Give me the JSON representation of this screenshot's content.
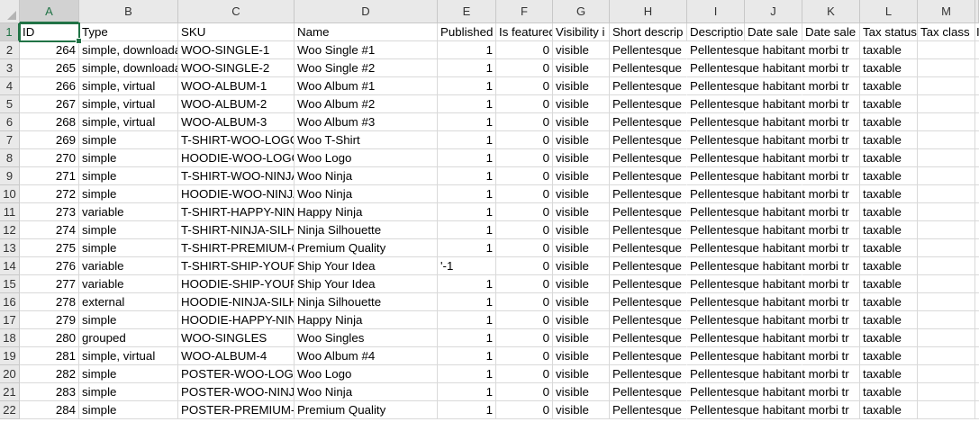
{
  "columns": [
    "A",
    "B",
    "C",
    "D",
    "E",
    "F",
    "G",
    "H",
    "I",
    "J",
    "K",
    "L",
    "M",
    ""
  ],
  "selected_cell": "A1",
  "accent_color": "#217346",
  "header_row": [
    "ID",
    "Type",
    "SKU",
    "Name",
    "Published",
    "Is featured",
    "Visibility i",
    "Short descrip",
    "Descriptio",
    "Date sale",
    "Date sale",
    "Tax status",
    "Tax class",
    "I"
  ],
  "rows": [
    [
      "264",
      "simple, downloadable",
      "WOO-SINGLE-1",
      "Woo Single #1",
      "1",
      "0",
      "visible",
      "Pellentesque",
      "Pellentesque habitant morbi tr",
      "taxable"
    ],
    [
      "265",
      "simple, downloadable",
      "WOO-SINGLE-2",
      "Woo Single #2",
      "1",
      "0",
      "visible",
      "Pellentesque",
      "Pellentesque habitant morbi tr",
      "taxable"
    ],
    [
      "266",
      "simple, virtual",
      "WOO-ALBUM-1",
      "Woo Album #1",
      "1",
      "0",
      "visible",
      "Pellentesque",
      "Pellentesque habitant morbi tr",
      "taxable"
    ],
    [
      "267",
      "simple, virtual",
      "WOO-ALBUM-2",
      "Woo Album #2",
      "1",
      "0",
      "visible",
      "Pellentesque",
      "Pellentesque habitant morbi tr",
      "taxable"
    ],
    [
      "268",
      "simple, virtual",
      "WOO-ALBUM-3",
      "Woo Album #3",
      "1",
      "0",
      "visible",
      "Pellentesque",
      "Pellentesque habitant morbi tr",
      "taxable"
    ],
    [
      "269",
      "simple",
      "T-SHIRT-WOO-LOGO",
      "Woo T-Shirt",
      "1",
      "0",
      "visible",
      "Pellentesque",
      "Pellentesque habitant morbi tr",
      "taxable"
    ],
    [
      "270",
      "simple",
      "HOODIE-WOO-LOGO",
      "Woo Logo",
      "1",
      "0",
      "visible",
      "Pellentesque",
      "Pellentesque habitant morbi tr",
      "taxable"
    ],
    [
      "271",
      "simple",
      "T-SHIRT-WOO-NINJA",
      "Woo Ninja",
      "1",
      "0",
      "visible",
      "Pellentesque",
      "Pellentesque habitant morbi tr",
      "taxable"
    ],
    [
      "272",
      "simple",
      "HOODIE-WOO-NINJA",
      "Woo Ninja",
      "1",
      "0",
      "visible",
      "Pellentesque",
      "Pellentesque habitant morbi tr",
      "taxable"
    ],
    [
      "273",
      "variable",
      "T-SHIRT-HAPPY-NINJA",
      "Happy Ninja",
      "1",
      "0",
      "visible",
      "Pellentesque",
      "Pellentesque habitant morbi tr",
      "taxable"
    ],
    [
      "274",
      "simple",
      "T-SHIRT-NINJA-SILHOUETTE",
      "Ninja Silhouette",
      "1",
      "0",
      "visible",
      "Pellentesque",
      "Pellentesque habitant morbi tr",
      "taxable"
    ],
    [
      "275",
      "simple",
      "T-SHIRT-PREMIUM-QUALITY",
      "Premium Quality",
      "1",
      "0",
      "visible",
      "Pellentesque",
      "Pellentesque habitant morbi tr",
      "taxable"
    ],
    [
      "276",
      "variable",
      "T-SHIRT-SHIP-YOUR-IDEA",
      "Ship Your Idea",
      "'-1",
      "0",
      "visible",
      "Pellentesque",
      "Pellentesque habitant morbi tr",
      "taxable"
    ],
    [
      "277",
      "variable",
      "HOODIE-SHIP-YOUR-IDEA",
      "Ship Your Idea",
      "1",
      "0",
      "visible",
      "Pellentesque",
      "Pellentesque habitant morbi tr",
      "taxable"
    ],
    [
      "278",
      "external",
      "HOODIE-NINJA-SILHOUETTE",
      "Ninja Silhouette",
      "1",
      "0",
      "visible",
      "Pellentesque",
      "Pellentesque habitant morbi tr",
      "taxable"
    ],
    [
      "279",
      "simple",
      "HOODIE-HAPPY-NINJA",
      "Happy Ninja",
      "1",
      "0",
      "visible",
      "Pellentesque",
      "Pellentesque habitant morbi tr",
      "taxable"
    ],
    [
      "280",
      "grouped",
      "WOO-SINGLES",
      "Woo Singles",
      "1",
      "0",
      "visible",
      "Pellentesque",
      "Pellentesque habitant morbi tr",
      "taxable"
    ],
    [
      "281",
      "simple, virtual",
      "WOO-ALBUM-4",
      "Woo Album #4",
      "1",
      "0",
      "visible",
      "Pellentesque",
      "Pellentesque habitant morbi tr",
      "taxable"
    ],
    [
      "282",
      "simple",
      "POSTER-WOO-LOGO",
      "Woo Logo",
      "1",
      "0",
      "visible",
      "Pellentesque",
      "Pellentesque habitant morbi tr",
      "taxable"
    ],
    [
      "283",
      "simple",
      "POSTER-WOO-NINJA",
      "Woo Ninja",
      "1",
      "0",
      "visible",
      "Pellentesque",
      "Pellentesque habitant morbi tr",
      "taxable"
    ],
    [
      "284",
      "simple",
      "POSTER-PREMIUM-QUALITY",
      "Premium Quality",
      "1",
      "0",
      "visible",
      "Pellentesque",
      "Pellentesque habitant morbi tr",
      "taxable"
    ]
  ]
}
